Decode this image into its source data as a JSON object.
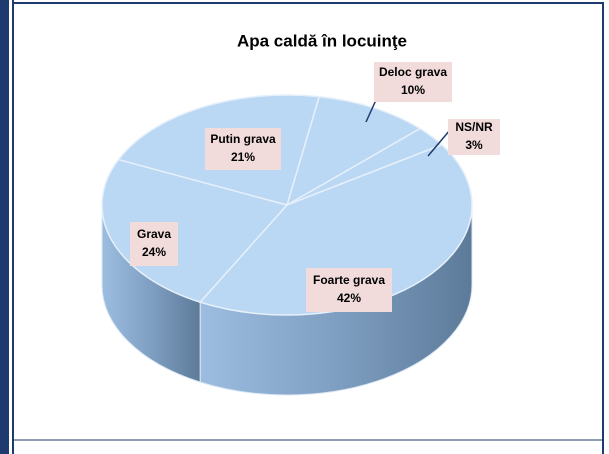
{
  "chart_data": {
    "type": "pie",
    "title": "Apa caldă în locuinţe",
    "categories": [
      "Deloc grava",
      "NS/NR",
      "Foarte grava",
      "Grava",
      "Putin grava"
    ],
    "values": [
      10,
      3,
      42,
      24,
      21
    ],
    "value_labels": [
      "10%",
      "3%",
      "42%",
      "24%",
      "21%"
    ],
    "color": "#b3d3f3"
  }
}
